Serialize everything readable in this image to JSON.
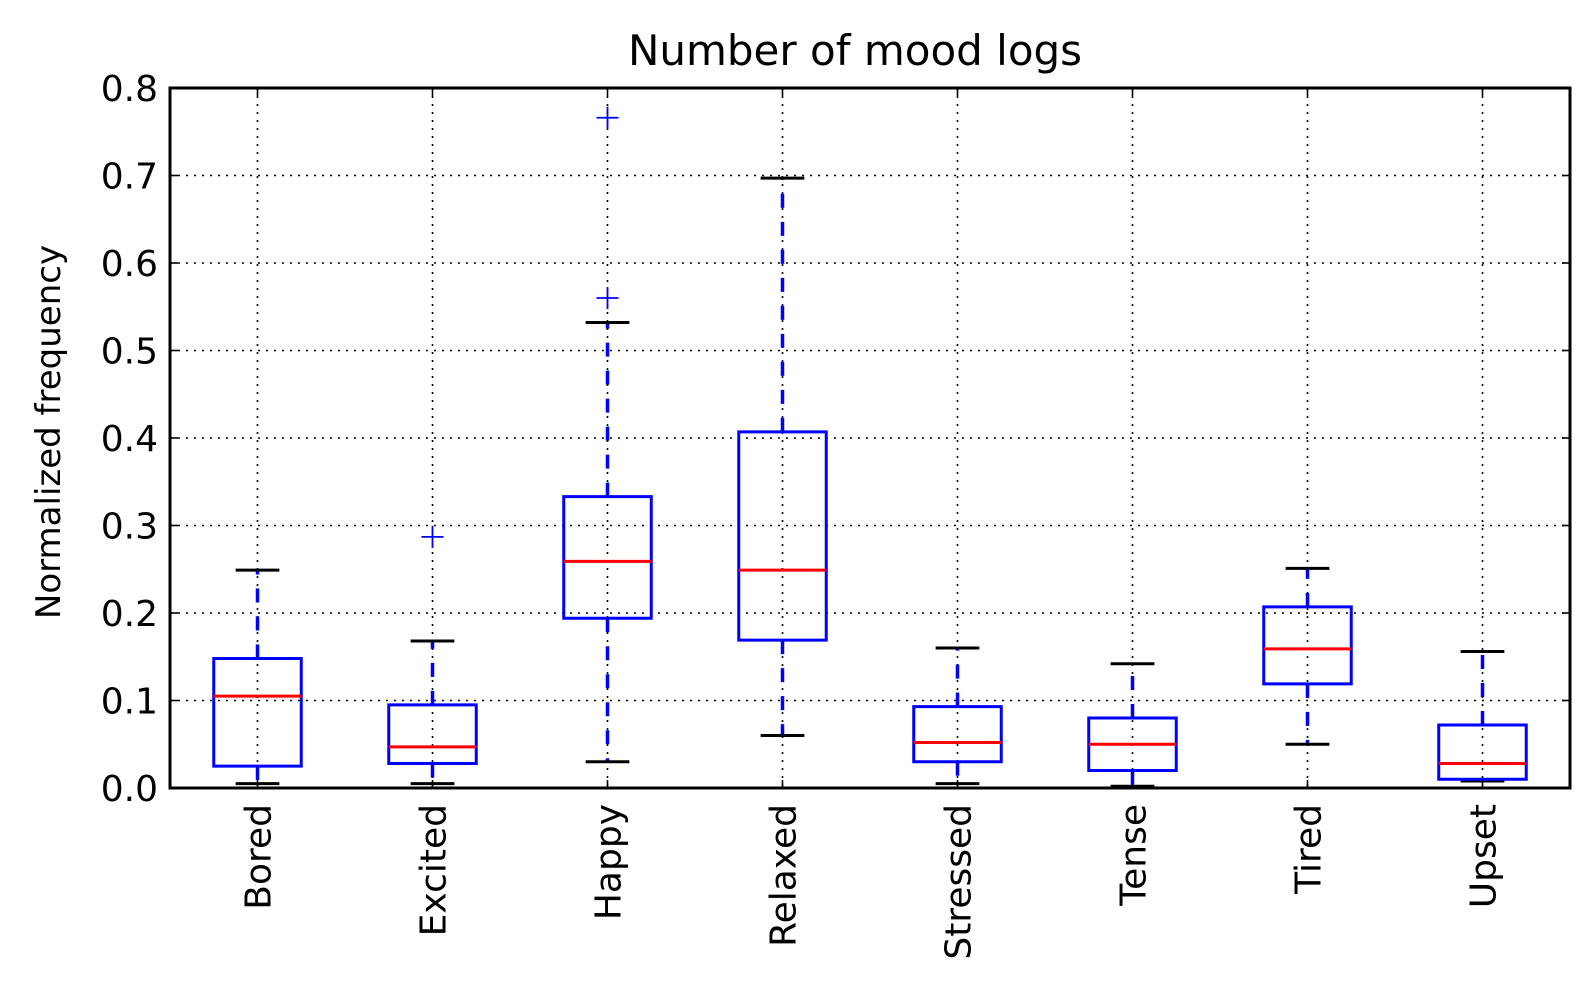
{
  "chart_data": {
    "type": "box",
    "title": "Number of mood logs",
    "xlabel": "",
    "ylabel": "Normalized frequency",
    "ylim": [
      0,
      0.8
    ],
    "yticks": [
      "0.0",
      "0.1",
      "0.2",
      "0.3",
      "0.4",
      "0.5",
      "0.6",
      "0.7",
      "0.8"
    ],
    "grid": true,
    "colors": {
      "box": "#0000ff",
      "median": "#ff0000",
      "whisker": "#0000ff",
      "cap": "#000000",
      "flier": "#0000ff"
    },
    "categories": [
      "Bored",
      "Excited",
      "Happy",
      "Relaxed",
      "Stressed",
      "Tense",
      "Tired",
      "Upset"
    ],
    "boxes": [
      {
        "label": "Bored",
        "whislo": 0.005,
        "q1": 0.025,
        "med": 0.105,
        "q3": 0.148,
        "whishi": 0.249,
        "fliers": []
      },
      {
        "label": "Excited",
        "whislo": 0.005,
        "q1": 0.028,
        "med": 0.047,
        "q3": 0.095,
        "whishi": 0.168,
        "fliers": [
          0.287
        ]
      },
      {
        "label": "Happy",
        "whislo": 0.03,
        "q1": 0.194,
        "med": 0.259,
        "q3": 0.333,
        "whishi": 0.532,
        "fliers": [
          0.56,
          0.766
        ]
      },
      {
        "label": "Relaxed",
        "whislo": 0.06,
        "q1": 0.169,
        "med": 0.249,
        "q3": 0.407,
        "whishi": 0.697,
        "fliers": []
      },
      {
        "label": "Stressed",
        "whislo": 0.005,
        "q1": 0.03,
        "med": 0.052,
        "q3": 0.093,
        "whishi": 0.16,
        "fliers": []
      },
      {
        "label": "Tense",
        "whislo": 0.002,
        "q1": 0.02,
        "med": 0.05,
        "q3": 0.08,
        "whishi": 0.142,
        "fliers": []
      },
      {
        "label": "Tired",
        "whislo": 0.05,
        "q1": 0.119,
        "med": 0.159,
        "q3": 0.207,
        "whishi": 0.251,
        "fliers": []
      },
      {
        "label": "Upset",
        "whislo": 0.008,
        "q1": 0.01,
        "med": 0.028,
        "q3": 0.072,
        "whishi": 0.156,
        "fliers": []
      }
    ]
  }
}
